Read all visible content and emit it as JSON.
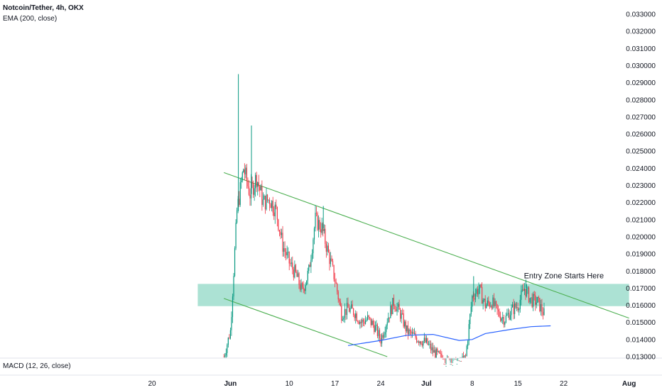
{
  "header": {
    "symbol": "Notcoin/Tether, 4h, OKX",
    "indicator": "EMA (200, close)"
  },
  "macd_label": "MACD (12, 26, close)",
  "colors": {
    "up": "#089981",
    "down": "#f23645",
    "ema": "#2962ff",
    "trendline": "#4caf50",
    "zone": "#7fd3bd"
  },
  "chart_data": {
    "type": "candlestick",
    "title": "Notcoin/Tether, 4h, OKX",
    "y_axis_ticks": [
      "0.033000",
      "0.032000",
      "0.031000",
      "0.030000",
      "0.029000",
      "0.028000",
      "0.027000",
      "0.026000",
      "0.025000",
      "0.024000",
      "0.023000",
      "0.022000",
      "0.021000",
      "0.020000",
      "0.019000",
      "0.018000",
      "0.017000",
      "0.016000",
      "0.015000",
      "0.014000",
      "0.013000"
    ],
    "ylim": [
      0.0128,
      0.0334
    ],
    "x_axis_ticks": [
      {
        "label": "20",
        "date": "2024-05-20"
      },
      {
        "label": "Jun",
        "date": "2024-06-01"
      },
      {
        "label": "10",
        "date": "2024-06-10"
      },
      {
        "label": "17",
        "date": "2024-06-17"
      },
      {
        "label": "24",
        "date": "2024-06-24"
      },
      {
        "label": "Jul",
        "date": "2024-07-01"
      },
      {
        "label": "8",
        "date": "2024-07-08"
      },
      {
        "label": "15",
        "date": "2024-07-15"
      },
      {
        "label": "22",
        "date": "2024-07-22"
      },
      {
        "label": "Aug",
        "date": "2024-08-01"
      }
    ],
    "price_path": [
      [
        "2024-05-31",
        0.013
      ],
      [
        "2024-06-01",
        0.0145
      ],
      [
        "2024-06-02",
        0.0215
      ],
      [
        "2024-06-03",
        0.024
      ],
      [
        "2024-06-04",
        0.0225
      ],
      [
        "2024-06-05",
        0.0235
      ],
      [
        "2024-06-06",
        0.022
      ],
      [
        "2024-06-07",
        0.0222
      ],
      [
        "2024-06-08",
        0.0215
      ],
      [
        "2024-06-09",
        0.0195
      ],
      [
        "2024-06-10",
        0.0185
      ],
      [
        "2024-06-11",
        0.0178
      ],
      [
        "2024-06-12",
        0.0168
      ],
      [
        "2024-06-13",
        0.018
      ],
      [
        "2024-06-14",
        0.021
      ],
      [
        "2024-06-15",
        0.0205
      ],
      [
        "2024-06-16",
        0.019
      ],
      [
        "2024-06-17",
        0.0175
      ],
      [
        "2024-06-18",
        0.0155
      ],
      [
        "2024-06-19",
        0.0158
      ],
      [
        "2024-06-20",
        0.0156
      ],
      [
        "2024-06-21",
        0.015
      ],
      [
        "2024-06-22",
        0.0152
      ],
      [
        "2024-06-23",
        0.0148
      ],
      [
        "2024-06-24",
        0.014
      ],
      [
        "2024-06-25",
        0.0152
      ],
      [
        "2024-06-26",
        0.0162
      ],
      [
        "2024-06-27",
        0.0155
      ],
      [
        "2024-06-28",
        0.0145
      ],
      [
        "2024-06-29",
        0.0142
      ],
      [
        "2024-06-30",
        0.014
      ],
      [
        "2024-07-01",
        0.0138
      ],
      [
        "2024-07-02",
        0.0133
      ],
      [
        "2024-07-03",
        0.013
      ],
      [
        "2024-07-04",
        0.0127
      ],
      [
        "2024-07-05",
        0.0126
      ],
      [
        "2024-07-06",
        0.0125
      ],
      [
        "2024-07-07",
        0.013
      ],
      [
        "2024-07-08",
        0.0165
      ],
      [
        "2024-07-09",
        0.017
      ],
      [
        "2024-07-10",
        0.016
      ],
      [
        "2024-07-11",
        0.0162
      ],
      [
        "2024-07-12",
        0.0155
      ],
      [
        "2024-07-13",
        0.0152
      ],
      [
        "2024-07-14",
        0.0157
      ],
      [
        "2024-07-15",
        0.016
      ],
      [
        "2024-07-16",
        0.017
      ],
      [
        "2024-07-17",
        0.0163
      ],
      [
        "2024-07-18",
        0.0162
      ],
      [
        "2024-07-19",
        0.0155
      ]
    ],
    "spikes": [
      {
        "date": "2024-06-02",
        "high": 0.0295
      },
      {
        "date": "2024-06-04",
        "high": 0.0265
      },
      {
        "date": "2024-06-15",
        "high": 0.0218
      },
      {
        "date": "2024-07-08",
        "high": 0.0177
      },
      {
        "date": "2024-07-16",
        "high": 0.0175
      }
    ],
    "ema_200": [
      [
        "2024-06-19",
        0.01365
      ],
      [
        "2024-06-24",
        0.01395
      ],
      [
        "2024-06-28",
        0.01425
      ],
      [
        "2024-07-02",
        0.0143
      ],
      [
        "2024-07-06",
        0.01395
      ],
      [
        "2024-07-08",
        0.014
      ],
      [
        "2024-07-10",
        0.01435
      ],
      [
        "2024-07-14",
        0.0146
      ],
      [
        "2024-07-17",
        0.01475
      ],
      [
        "2024-07-20",
        0.0148
      ]
    ],
    "zone": {
      "from_date": "2024-05-27",
      "to_date": "2024-08-01",
      "low": 0.01595,
      "high": 0.01725
    },
    "trendlines": [
      {
        "from": [
          "2024-05-31",
          0.02375
        ],
        "to": [
          "2024-08-01",
          0.01525
        ]
      },
      {
        "from": [
          "2024-05-31",
          0.0164
        ],
        "to": [
          "2024-06-25",
          0.013
        ]
      }
    ],
    "annotation": {
      "text": "Entry Zone Starts Here",
      "date": "2024-07-17",
      "price": 0.01775
    }
  }
}
